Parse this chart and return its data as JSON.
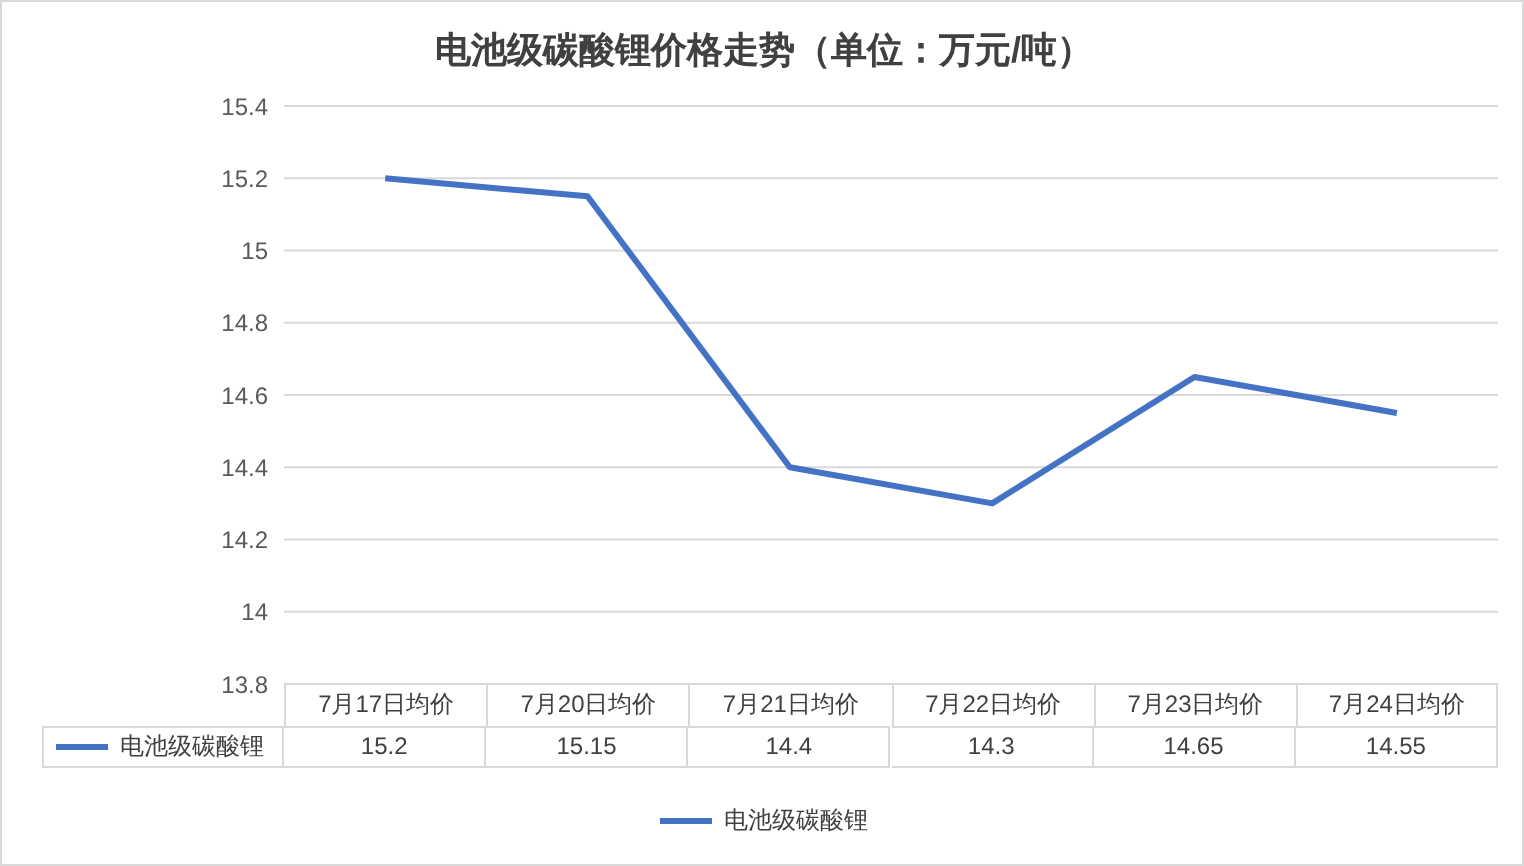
{
  "chart_data": {
    "type": "line",
    "title": "电池级碳酸锂价格走势（单位：万元/吨）",
    "categories": [
      "7月17日均价",
      "7月20日均价",
      "7月21日均价",
      "7月22日均价",
      "7月23日均价",
      "7月24日均价"
    ],
    "series": [
      {
        "name": "电池级碳酸锂",
        "color": "#4472c4",
        "values": [
          15.2,
          15.15,
          14.4,
          14.3,
          14.65,
          14.55
        ]
      }
    ],
    "ylim": [
      13.8,
      15.4
    ],
    "yticks": [
      13.8,
      14,
      14.2,
      14.4,
      14.6,
      14.8,
      15,
      15.2,
      15.4
    ],
    "grid": "y",
    "legend": "bottom",
    "data_labels": true,
    "marker": "none",
    "line_style": "solid"
  }
}
